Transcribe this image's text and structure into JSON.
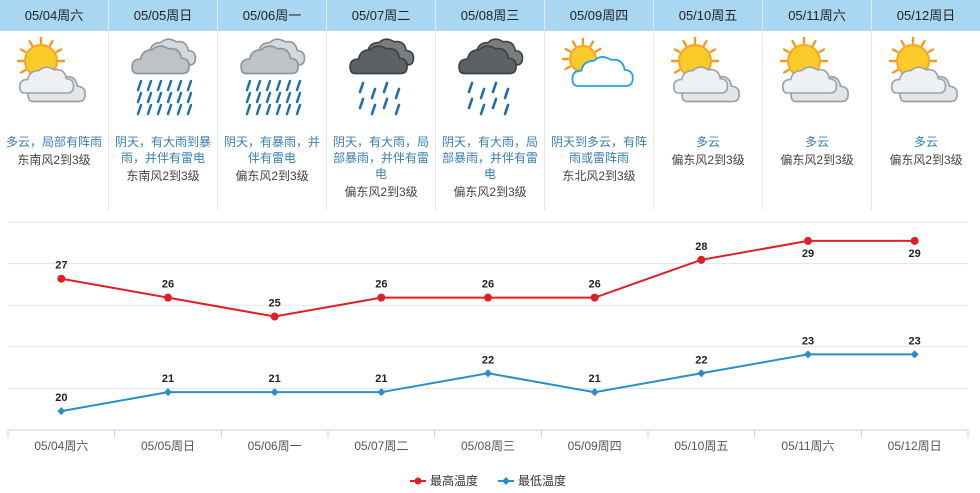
{
  "forecast": [
    {
      "date": "05/04周六",
      "icon": "sun-cloud-icon",
      "desc": "多云，局部有阵雨",
      "wind": "东南风2到3级"
    },
    {
      "date": "05/05周日",
      "icon": "rain-cloud-icon",
      "desc": "阴天，有大雨到暴雨，并伴有雷电",
      "wind": "东南风2到3级"
    },
    {
      "date": "05/06周一",
      "icon": "rain-cloud-icon",
      "desc": "阴天，有暴雨，并伴有雷电",
      "wind": "偏东风2到3级"
    },
    {
      "date": "05/07周二",
      "icon": "dark-rain-cloud-icon",
      "desc": "阴天，有大雨，局部暴雨，并伴有雷电",
      "wind": "偏东风2到3级"
    },
    {
      "date": "05/08周三",
      "icon": "dark-rain-cloud-icon",
      "desc": "阴天，有大雨，局部暴雨，并伴有雷电",
      "wind": "偏东风2到3级"
    },
    {
      "date": "05/09周四",
      "icon": "sun-light-cloud-icon",
      "desc": "阴天到多云，有阵雨或雷阵雨",
      "wind": "东北风2到3级"
    },
    {
      "date": "05/10周五",
      "icon": "sun-cloud-icon",
      "desc": "多云",
      "wind": "偏东风2到3级"
    },
    {
      "date": "05/11周六",
      "icon": "sun-cloud-icon",
      "desc": "多云",
      "wind": "偏东风2到3级"
    },
    {
      "date": "05/12周日",
      "icon": "sun-cloud-icon",
      "desc": "多云",
      "wind": "偏东风2到3级"
    }
  ],
  "chart_data": {
    "type": "line",
    "categories": [
      "05/04周六",
      "05/05周日",
      "05/06周一",
      "05/07周二",
      "05/08周三",
      "05/09周四",
      "05/10周五",
      "05/11周六",
      "05/12周日"
    ],
    "series": [
      {
        "name": "最高温度",
        "values": [
          27,
          26,
          25,
          26,
          26,
          26,
          28,
          29,
          29
        ],
        "color": "#dd1f26",
        "marker": "circle"
      },
      {
        "name": "最低温度",
        "values": [
          20,
          21,
          21,
          21,
          22,
          21,
          22,
          23,
          23
        ],
        "color": "#2d8fc1",
        "marker": "diamond"
      }
    ],
    "ylim": [
      19,
      30
    ],
    "grid": true,
    "legend": "bottom-center",
    "data_labels": true
  },
  "colors": {
    "header_bg": "#a9d7f1",
    "desc_text": "#3a7fb0",
    "grid": "#dde6ee"
  }
}
